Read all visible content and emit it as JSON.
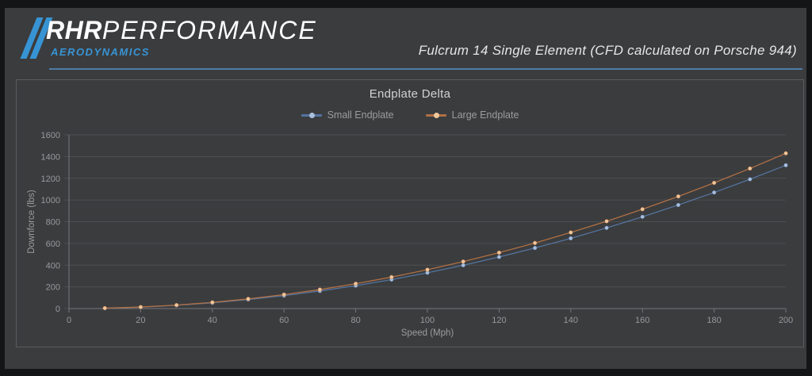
{
  "header": {
    "brand_bold": "RHR",
    "brand_light": "PERFORMANCE",
    "brand_sub": "AERODYNAMICS",
    "title": "Fulcrum 14 Single Element (CFD calculated on Porsche 944)"
  },
  "colors": {
    "brand_blue": "#3794d4",
    "divider_blue": "#4f7ba6",
    "panel_bg": "#3b3c3e",
    "grid": "#4d4e51",
    "axis": "#75767a",
    "tick_text": "#97989b"
  },
  "chart_data": {
    "type": "line",
    "title": "Endplate Delta",
    "xlabel": "Speed (Mph)",
    "ylabel": "Downforce (lbs)",
    "xlim": [
      0,
      200
    ],
    "ylim": [
      0,
      1600
    ],
    "x_ticks": [
      0,
      20,
      40,
      60,
      80,
      100,
      120,
      140,
      160,
      180,
      200
    ],
    "y_ticks": [
      0,
      200,
      400,
      600,
      800,
      1000,
      1200,
      1400,
      1600
    ],
    "grid": "horizontal",
    "legend_position": "top",
    "x": [
      10,
      20,
      30,
      40,
      50,
      60,
      70,
      80,
      90,
      100,
      110,
      120,
      130,
      140,
      150,
      160,
      170,
      180,
      190,
      200
    ],
    "series": [
      {
        "name": "Small Endplate",
        "color": "#54749f",
        "marker_color": "#a9bfdd",
        "values": [
          3,
          13,
          30,
          53,
          83,
          119,
          162,
          211,
          267,
          330,
          399,
          475,
          558,
          647,
          743,
          845,
          954,
          1069,
          1191,
          1320
        ]
      },
      {
        "name": "Large Endplate",
        "color": "#b07044",
        "marker_color": "#f0c79d",
        "values": [
          4,
          14,
          32,
          57,
          89,
          129,
          175,
          229,
          290,
          358,
          433,
          515,
          604,
          701,
          804,
          915,
          1033,
          1158,
          1290,
          1430
        ]
      }
    ]
  }
}
